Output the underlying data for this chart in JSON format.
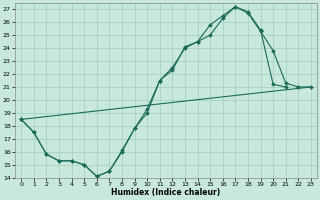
{
  "xlabel": "Humidex (Indice chaleur)",
  "xlim": [
    -0.5,
    23.5
  ],
  "ylim": [
    14,
    27.5
  ],
  "yticks": [
    14,
    15,
    16,
    17,
    18,
    19,
    20,
    21,
    22,
    23,
    24,
    25,
    26,
    27
  ],
  "xticks": [
    0,
    1,
    2,
    3,
    4,
    5,
    6,
    7,
    8,
    9,
    10,
    11,
    12,
    13,
    14,
    15,
    16,
    17,
    18,
    19,
    20,
    21,
    22,
    23
  ],
  "bg_color": "#c8e8dc",
  "line_color": "#1a6b5a",
  "grid_color": "#a0ccbe",
  "lines": [
    {
      "x": [
        0,
        1,
        2,
        3,
        4,
        5,
        6,
        7,
        8,
        9,
        10,
        11,
        12,
        13,
        14,
        15,
        16,
        17,
        18,
        19,
        20,
        21,
        22,
        23
      ],
      "y": [
        18.5,
        17.5,
        15.8,
        15.3,
        15.3,
        15.0,
        14.1,
        14.5,
        16.0,
        17.8,
        19.3,
        21.5,
        22.5,
        24.0,
        24.5,
        25.0,
        26.3,
        27.2,
        26.7,
        25.3,
        23.8,
        21.3,
        21.0,
        21.0
      ],
      "marker": true
    },
    {
      "x": [
        0,
        1,
        2,
        3,
        4,
        5,
        6,
        7,
        8,
        9,
        10,
        11,
        12,
        13,
        14,
        15,
        16,
        17,
        18,
        19,
        20,
        21
      ],
      "y": [
        18.5,
        17.5,
        15.8,
        15.3,
        15.3,
        15.0,
        14.1,
        14.5,
        16.1,
        17.8,
        19.0,
        21.5,
        22.3,
        24.1,
        24.5,
        25.8,
        26.5,
        27.2,
        26.8,
        25.4,
        21.2,
        21.0
      ],
      "marker": true
    },
    {
      "x": [
        0,
        23
      ],
      "y": [
        18.5,
        21.0
      ],
      "marker": false
    }
  ]
}
